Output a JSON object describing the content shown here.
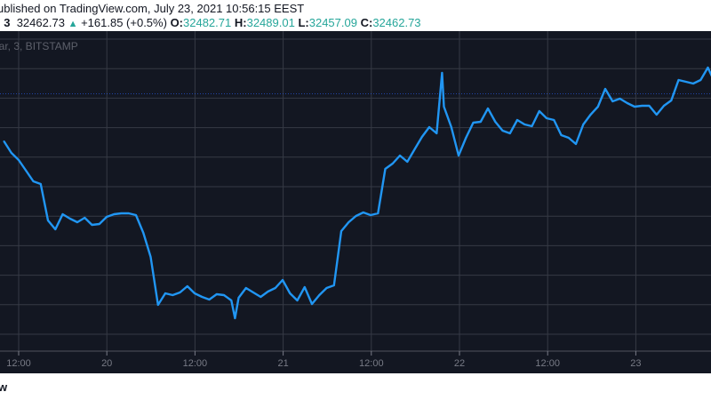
{
  "header": {
    "published": "ublished on TradingView.com, July 23, 2021 10:56:15 EEST",
    "symbol_suffix": ", 3",
    "last": "32462.73",
    "change": "+161.85 (+0.5%)",
    "o_label": "O:",
    "o": "32482.71",
    "h_label": "H:",
    "h": "32489.01",
    "l_label": "L:",
    "l": "32457.09",
    "c_label": "C:",
    "c": "32462.73"
  },
  "legend": "lar, 3, BITSTAMP",
  "footer_logo": "w",
  "colors": {
    "background": "#131722",
    "line": "#2196f3",
    "up": "#26a69a",
    "grid": "#363a45"
  },
  "chart_data": {
    "type": "line",
    "xlabel": "",
    "ylabel": "",
    "grid": true,
    "x_ticks": [
      "12:00",
      "20",
      "12:00",
      "21",
      "12:00",
      "22",
      "12:00",
      "23"
    ],
    "previous_close_line": 32300.88,
    "series": [
      {
        "x": [
          "07-19 10:00",
          "07-19 11:00",
          "07-19 12:00",
          "07-19 13:00",
          "07-19 14:00",
          "07-19 15:00",
          "07-19 16:00",
          "07-19 17:00",
          "07-19 18:00",
          "07-19 19:00",
          "07-19 20:00",
          "07-19 21:00",
          "07-19 22:00",
          "07-19 23:00",
          "07-20 00:00",
          "07-20 01:00",
          "07-20 02:00",
          "07-20 03:00",
          "07-20 04:00",
          "07-20 05:00",
          "07-20 06:00",
          "07-20 07:00",
          "07-20 08:00",
          "07-20 09:00",
          "07-20 10:00",
          "07-20 11:00",
          "07-20 12:00",
          "07-20 13:00",
          "07-20 14:00",
          "07-20 15:00",
          "07-20 16:00",
          "07-20 17:00",
          "07-20 17:30",
          "07-20 18:00",
          "07-20 19:00",
          "07-20 20:00",
          "07-20 21:00",
          "07-20 22:00",
          "07-20 23:00",
          "07-21 00:00",
          "07-21 01:00",
          "07-21 02:00",
          "07-21 03:00",
          "07-21 04:00",
          "07-21 05:00",
          "07-21 06:00",
          "07-21 07:00",
          "07-21 08:00",
          "07-21 09:00",
          "07-21 10:00",
          "07-21 11:00",
          "07-21 12:00",
          "07-21 13:00",
          "07-21 14:00",
          "07-21 15:00",
          "07-21 16:00",
          "07-21 17:00",
          "07-21 18:00",
          "07-21 19:00",
          "07-21 20:00",
          "07-21 21:00",
          "07-21 21:45",
          "07-21 22:00",
          "07-21 23:00",
          "07-22 00:00",
          "07-22 01:00",
          "07-22 02:00",
          "07-22 03:00",
          "07-22 04:00",
          "07-22 05:00",
          "07-22 06:00",
          "07-22 07:00",
          "07-22 08:00",
          "07-22 09:00",
          "07-22 10:00",
          "07-22 11:00",
          "07-22 12:00",
          "07-22 13:00",
          "07-22 14:00",
          "07-22 15:00",
          "07-22 16:00",
          "07-22 17:00",
          "07-22 18:00",
          "07-22 19:00",
          "07-22 20:00",
          "07-22 21:00",
          "07-22 22:00",
          "07-22 23:00",
          "07-23 00:00",
          "07-23 01:00",
          "07-23 02:00",
          "07-23 03:00",
          "07-23 04:00",
          "07-23 05:00",
          "07-23 06:00",
          "07-23 07:00",
          "07-23 08:00",
          "07-23 09:00",
          "07-23 10:00",
          "07-23 10:54"
        ],
        "values": [
          31659,
          31503,
          31407,
          31263,
          31119,
          31083,
          30591,
          30471,
          30675,
          30615,
          30567,
          30627,
          30531,
          30543,
          30639,
          30675,
          30687,
          30687,
          30663,
          30423,
          30099,
          29451,
          29607,
          29583,
          29619,
          29703,
          29607,
          29559,
          29523,
          29595,
          29583,
          29511,
          29271,
          29547,
          29679,
          29619,
          29559,
          29631,
          29679,
          29787,
          29607,
          29511,
          29691,
          29463,
          29583,
          29679,
          29715,
          30447,
          30567,
          30651,
          30699,
          30663,
          30687,
          31287,
          31359,
          31467,
          31383,
          31551,
          31719,
          31851,
          31767,
          32583,
          32127,
          31851,
          31467,
          31707,
          31911,
          31923,
          32103,
          31923,
          31803,
          31767,
          31947,
          31887,
          31863,
          32067,
          31971,
          31947,
          31743,
          31707,
          31623,
          31887,
          32019,
          32127,
          32367,
          32199,
          32235,
          32175,
          32127,
          32139,
          32139,
          32019,
          32139,
          32211,
          32487,
          32463,
          32439,
          32487,
          32655,
          32462.73
        ]
      }
    ]
  }
}
